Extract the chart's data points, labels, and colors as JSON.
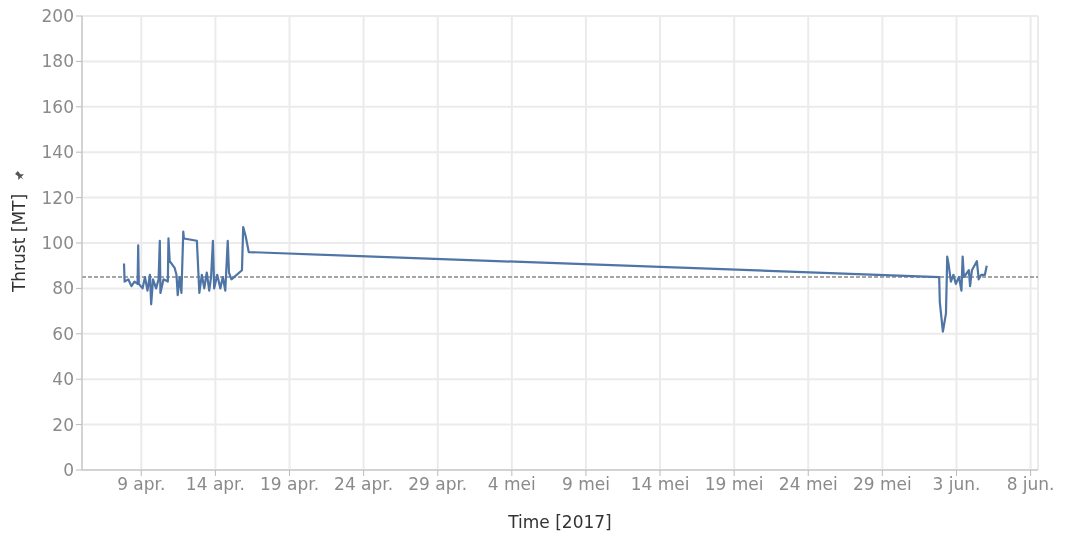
{
  "chart_data": {
    "type": "line",
    "xlabel": "Time [2017]",
    "ylabel": "Thrust [MT]",
    "x": [
      "2017-04-07T20:00",
      "2017-04-07T21:00",
      "2017-04-08T03:00",
      "2017-04-08T08:00",
      "2017-04-08T13:00",
      "2017-04-08T18:00",
      "2017-04-08T19:00",
      "2017-04-08T20:00",
      "2017-04-09T02:00",
      "2017-04-09T06:00",
      "2017-04-09T10:00",
      "2017-04-09T14:00",
      "2017-04-09T16:00",
      "2017-04-09T19:00",
      "2017-04-10T00:00",
      "2017-04-10T04:00",
      "2017-04-10T06:00",
      "2017-04-10T07:00",
      "2017-04-10T12:00",
      "2017-04-10T19:00",
      "2017-04-10T20:00",
      "2017-04-10T22:00",
      "2017-04-11T06:00",
      "2017-04-11T09:00",
      "2017-04-11T11:00",
      "2017-04-11T14:00",
      "2017-04-11T17:00",
      "2017-04-11T20:00",
      "2017-04-11T21:00",
      "2017-04-12T18:00",
      "2017-04-12T22:00",
      "2017-04-13T02:00",
      "2017-04-13T06:00",
      "2017-04-13T10:00",
      "2017-04-13T14:00",
      "2017-04-13T17:00",
      "2017-04-13T20:00",
      "2017-04-13T22:00",
      "2017-04-14T03:00",
      "2017-04-14T08:00",
      "2017-04-14T12:00",
      "2017-04-14T16:00",
      "2017-04-14T20:00",
      "2017-04-14T22:00",
      "2017-04-15T02:00",
      "2017-04-15T19:00",
      "2017-04-15T21:00",
      "2017-04-16T01:00",
      "2017-04-16T06:00",
      "2017-06-01T20:00",
      "2017-06-01T21:00",
      "2017-06-02T02:00",
      "2017-06-02T07:00",
      "2017-06-02T09:00",
      "2017-06-02T11:00",
      "2017-06-02T15:00",
      "2017-06-02T19:00",
      "2017-06-02T23:00",
      "2017-06-03T04:00",
      "2017-06-03T08:00",
      "2017-06-03T10:00",
      "2017-06-03T12:00",
      "2017-06-03T20:00",
      "2017-06-03T22:00",
      "2017-06-04T01:00",
      "2017-06-04T09:00",
      "2017-06-04T12:00",
      "2017-06-04T16:00",
      "2017-06-04T22:00",
      "2017-06-05T01:00"
    ],
    "series": [
      {
        "color": "#4e75a6",
        "values": [
          91,
          83,
          84,
          81,
          83,
          82,
          99,
          82,
          80,
          85,
          79,
          86,
          73,
          84,
          80,
          84,
          101,
          78,
          84,
          83,
          102,
          92,
          89,
          86,
          77,
          85,
          78,
          105,
          102,
          101,
          78,
          86,
          80,
          87,
          79,
          85,
          101,
          80,
          86,
          80,
          85,
          79,
          101,
          87,
          84,
          88,
          107,
          103,
          96,
          85,
          74,
          61,
          69,
          94,
          91,
          83,
          86,
          82,
          85,
          79,
          94,
          85,
          88,
          81,
          88,
          92,
          84,
          86,
          86,
          90
        ]
      }
    ],
    "xlim": [
      "2017-04-05",
      "2017-06-08T12:00"
    ],
    "xticks": [
      {
        "value": "2017-04-09",
        "label": "9 apr."
      },
      {
        "value": "2017-04-14",
        "label": "14 apr."
      },
      {
        "value": "2017-04-19",
        "label": "19 apr."
      },
      {
        "value": "2017-04-24",
        "label": "24 apr."
      },
      {
        "value": "2017-04-29",
        "label": "29 apr."
      },
      {
        "value": "2017-05-04",
        "label": "4 mei"
      },
      {
        "value": "2017-05-09",
        "label": "9 mei"
      },
      {
        "value": "2017-05-14",
        "label": "14 mei"
      },
      {
        "value": "2017-05-19",
        "label": "19 mei"
      },
      {
        "value": "2017-05-24",
        "label": "24 mei"
      },
      {
        "value": "2017-05-29",
        "label": "29 mei"
      },
      {
        "value": "2017-06-03",
        "label": "3 jun."
      },
      {
        "value": "2017-06-08",
        "label": "8 jun."
      }
    ],
    "ylim": [
      0,
      200
    ],
    "yticks": [
      0,
      20,
      40,
      60,
      80,
      100,
      120,
      140,
      160,
      180,
      200
    ],
    "ref_lines": [
      {
        "axis": "y",
        "value": 85,
        "color": "#888888",
        "line_style": "dashed"
      }
    ],
    "grid": true,
    "marker": "none",
    "line_style": "solid"
  }
}
